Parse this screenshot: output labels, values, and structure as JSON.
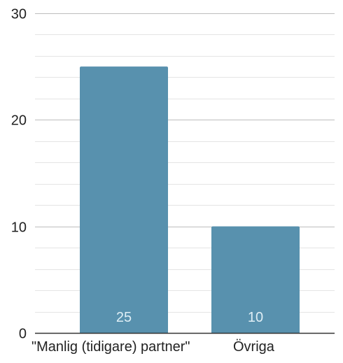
{
  "chart_data": {
    "type": "bar",
    "title": "",
    "xlabel": "",
    "ylabel": "",
    "categories": [
      "\"Manlig (tidigare) partner\"",
      "Övriga"
    ],
    "values": [
      25,
      10
    ],
    "data_labels": [
      "25",
      "10"
    ],
    "ylim": [
      0,
      30
    ],
    "yticks": [
      0,
      10,
      20,
      30
    ],
    "ytick_labels": [
      "0",
      "10",
      "20",
      "30"
    ],
    "minor_grid_step": 2,
    "grid": true,
    "legend": "none",
    "colors": {
      "bar": "#5891ae",
      "bar_label": "#dfeef5",
      "major_grid": "#bdbdbd",
      "minor_grid": "#e4e4e4",
      "axis_line": "#333333",
      "tick_text": "#222222"
    }
  }
}
